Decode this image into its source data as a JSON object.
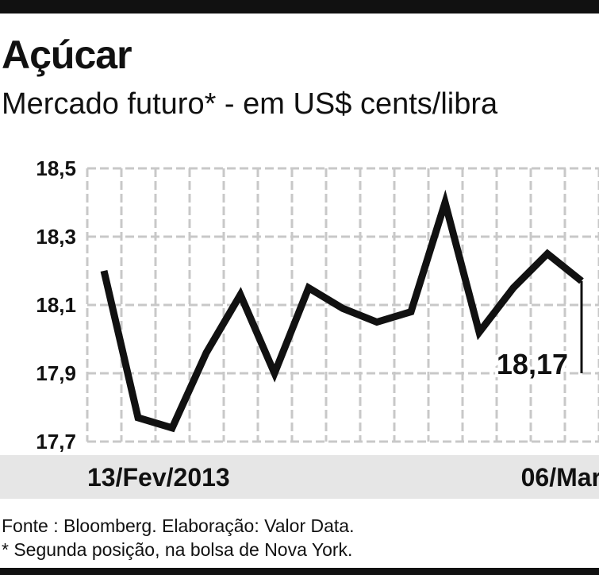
{
  "header": {
    "title": "Açúcar",
    "subtitle": "Mercado futuro* - em US$ cents/libra"
  },
  "chart_data": {
    "type": "line",
    "title": "Açúcar",
    "subtitle": "Mercado futuro* - em US$ cents/libra",
    "xlabel": "",
    "ylabel": "",
    "ylim": [
      17.7,
      18.5
    ],
    "yticks": [
      17.7,
      17.9,
      18.1,
      18.3,
      18.5
    ],
    "ytick_labels": [
      "17,7",
      "17,9",
      "18,1",
      "18,3",
      "18,5"
    ],
    "grid": true,
    "x_start_label": "13/Fev/2013",
    "x_end_label": "06/Mar",
    "series": [
      {
        "values": [
          18.2,
          17.77,
          17.74,
          17.96,
          18.13,
          17.9,
          18.15,
          18.09,
          18.05,
          18.08,
          18.4,
          18.02,
          18.15,
          18.25,
          18.17
        ],
        "color": "#111111"
      }
    ],
    "annotation": {
      "text": "18,17",
      "index": 14
    }
  },
  "footer": {
    "source": "Fonte : Bloomberg. Elaboração: Valor Data.",
    "note": "* Segunda posição, na bolsa de Nova York."
  }
}
